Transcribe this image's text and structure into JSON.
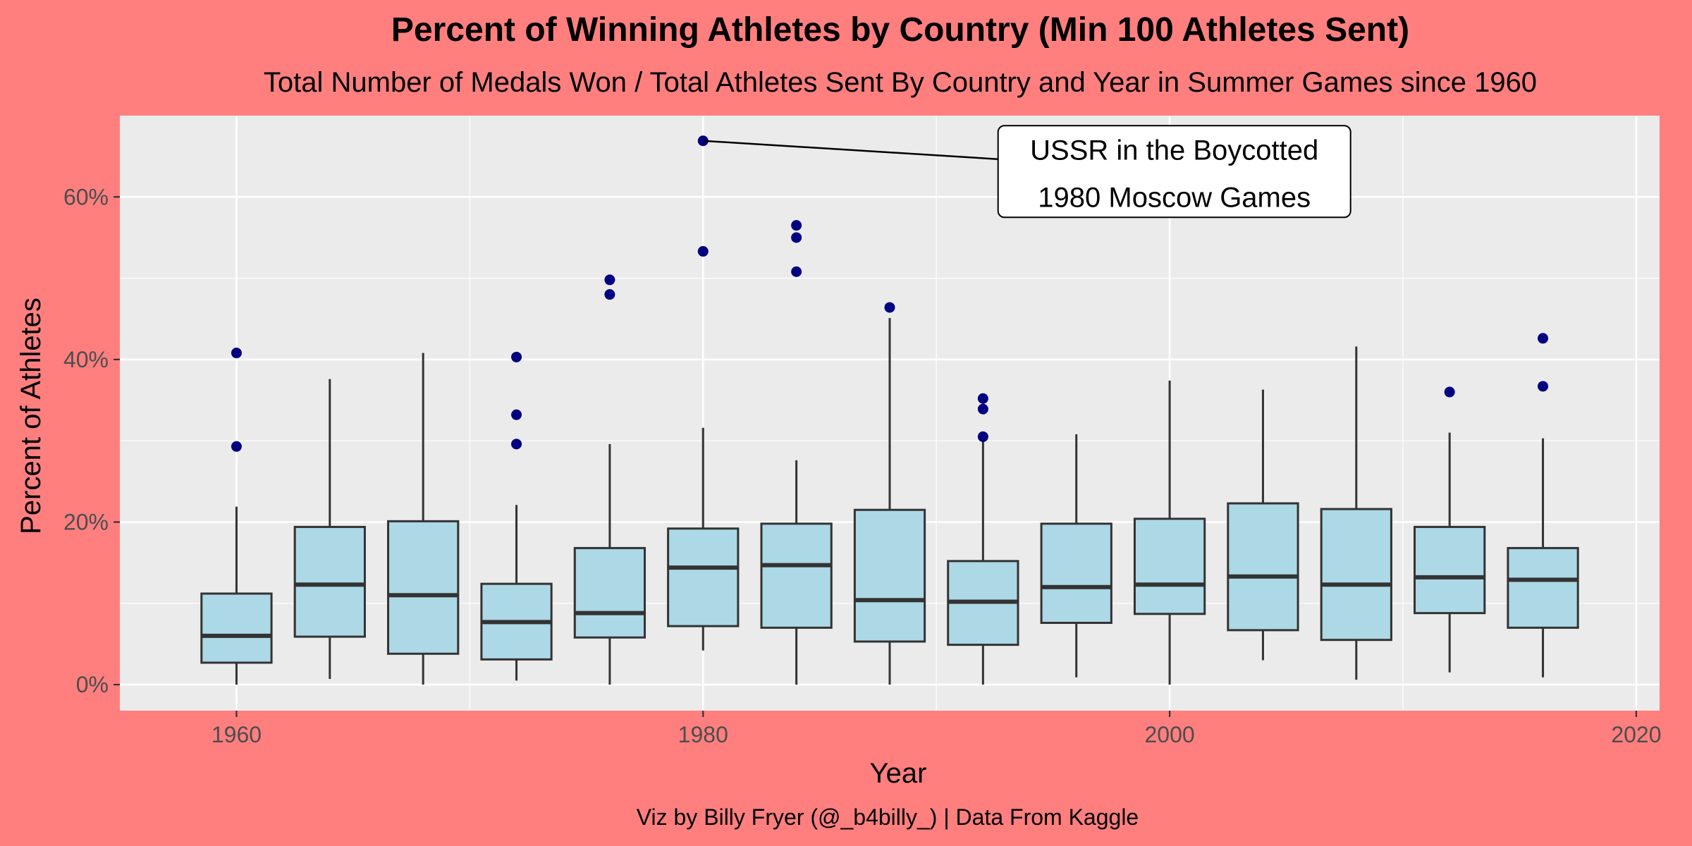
{
  "chart_data": {
    "type": "box",
    "title": "Percent of Winning Athletes by Country (Min 100 Athletes Sent)",
    "subtitle": "Total Number of Medals Won / Total Athletes Sent By Country and Year in Summer Games since 1960",
    "xlabel": "Year",
    "ylabel": "Percent of Athletes",
    "caption": "Viz by Billy Fryer (@_b4billy_) | Data From Kaggle",
    "xlim": [
      1955,
      2021
    ],
    "ylim": [
      -3.2,
      70
    ],
    "x_ticks": [
      1960,
      1980,
      2000,
      2020
    ],
    "x_tick_labels": [
      "1960",
      "1980",
      "2000",
      "2020"
    ],
    "y_ticks": [
      0,
      20,
      40,
      60
    ],
    "y_tick_labels": [
      "0%",
      "20%",
      "40%",
      "60%"
    ],
    "grid": true,
    "colors": {
      "background": "#FF7F7F",
      "panel": "#EBEBEB",
      "grid": "#FFFFFF",
      "box_fill": "#ADD8E6",
      "box_line": "#333333",
      "outlier": "#000080"
    },
    "boxes": [
      {
        "year": 1960,
        "lower": 0.0,
        "q1": 2.7,
        "median": 6.0,
        "q3": 11.2,
        "upper": 21.9,
        "outliers": [
          29.3,
          40.8
        ]
      },
      {
        "year": 1964,
        "lower": 0.7,
        "q1": 5.9,
        "median": 12.3,
        "q3": 19.4,
        "upper": 37.6,
        "outliers": []
      },
      {
        "year": 1968,
        "lower": 0.0,
        "q1": 3.8,
        "median": 11.0,
        "q3": 20.1,
        "upper": 40.8,
        "outliers": []
      },
      {
        "year": 1972,
        "lower": 0.5,
        "q1": 3.1,
        "median": 7.7,
        "q3": 12.4,
        "upper": 22.1,
        "outliers": [
          29.6,
          33.2,
          40.3
        ]
      },
      {
        "year": 1976,
        "lower": 0.0,
        "q1": 5.8,
        "median": 8.8,
        "q3": 16.8,
        "upper": 29.6,
        "outliers": [
          48.0,
          49.8
        ]
      },
      {
        "year": 1980,
        "lower": 4.2,
        "q1": 7.2,
        "median": 14.4,
        "q3": 19.2,
        "upper": 31.6,
        "outliers": [
          53.3,
          66.9
        ]
      },
      {
        "year": 1984,
        "lower": 0.0,
        "q1": 7.0,
        "median": 14.7,
        "q3": 19.8,
        "upper": 27.6,
        "outliers": [
          50.8,
          55.0,
          56.5
        ]
      },
      {
        "year": 1988,
        "lower": 0.0,
        "q1": 5.3,
        "median": 10.4,
        "q3": 21.5,
        "upper": 45.1,
        "outliers": [
          46.4
        ]
      },
      {
        "year": 1992,
        "lower": 0.0,
        "q1": 4.9,
        "median": 10.2,
        "q3": 15.2,
        "upper": 30.1,
        "outliers": [
          30.5,
          33.9,
          35.2
        ]
      },
      {
        "year": 1996,
        "lower": 0.9,
        "q1": 7.6,
        "median": 12.0,
        "q3": 19.8,
        "upper": 30.8,
        "outliers": []
      },
      {
        "year": 2000,
        "lower": 0.0,
        "q1": 8.7,
        "median": 12.3,
        "q3": 20.4,
        "upper": 37.4,
        "outliers": []
      },
      {
        "year": 2004,
        "lower": 3.0,
        "q1": 6.7,
        "median": 13.3,
        "q3": 22.3,
        "upper": 36.3,
        "outliers": []
      },
      {
        "year": 2008,
        "lower": 0.6,
        "q1": 5.5,
        "median": 12.3,
        "q3": 21.6,
        "upper": 41.6,
        "outliers": []
      },
      {
        "year": 2012,
        "lower": 1.5,
        "q1": 8.8,
        "median": 13.2,
        "q3": 19.4,
        "upper": 31.0,
        "outliers": [
          36.0
        ]
      },
      {
        "year": 2016,
        "lower": 0.9,
        "q1": 7.0,
        "median": 12.9,
        "q3": 16.8,
        "upper": 30.3,
        "outliers": [
          36.7,
          42.6
        ]
      }
    ],
    "annotation": {
      "lines": [
        "USSR in the Boycotted",
        "1980 Moscow Games"
      ],
      "point_x": 1980,
      "point_y": 66.9,
      "label_x": 2000.2,
      "label_y": 63.3
    }
  }
}
